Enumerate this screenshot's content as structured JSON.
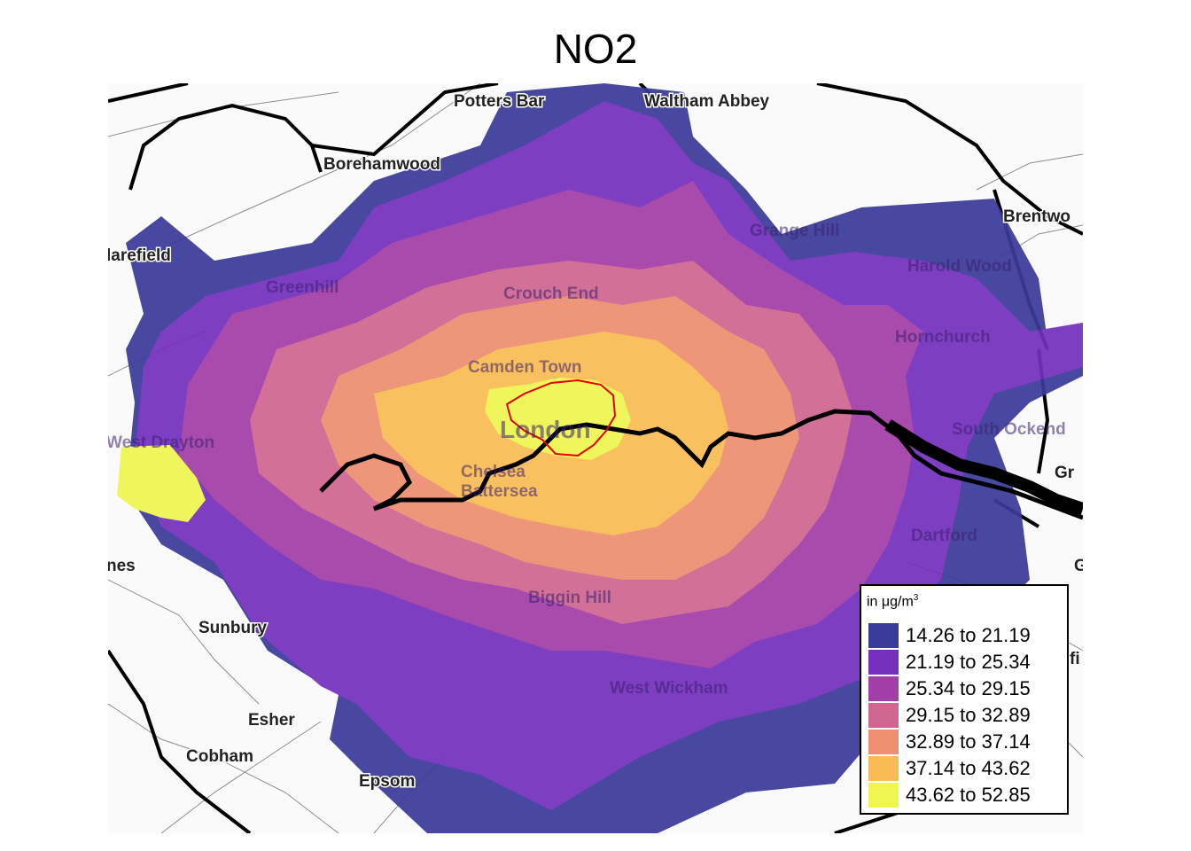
{
  "title": "NO2",
  "legend": {
    "unit_prefix": "in μg/m",
    "unit_exp": "3",
    "items": [
      {
        "label": "14.26 to 21.19",
        "color": "#3b3b9a"
      },
      {
        "label": "21.19 to 25.34",
        "color": "#7430bd"
      },
      {
        "label": "25.34 to 29.15",
        "color": "#a23ea8"
      },
      {
        "label": "29.15 to 32.89",
        "color": "#cf6690"
      },
      {
        "label": "32.89 to 37.14",
        "color": "#ee8f70"
      },
      {
        "label": "37.14 to 43.62",
        "color": "#f9bc55"
      },
      {
        "label": "43.62 to 52.85",
        "color": "#eef64f"
      }
    ]
  },
  "places": {
    "potters_bar": "Potters Bar",
    "waltham_abbey": "Waltham Abbey",
    "borehamwood": "Borehamwood",
    "brentwood": "Brentwo",
    "harefield": "larefield",
    "grange_hill": "Grange Hill",
    "harold_wood": "Harold Wood",
    "greenhill": "Greenhill",
    "crouch_end": "Crouch End",
    "hornchurch": "Hornchurch",
    "camden_town": "Camden Town",
    "london": "London",
    "west_drayton": "West Drayton",
    "south_ockendon": "South Ockend",
    "chelsea": "Chelsea",
    "battersea": "Battersea",
    "gr": "Gr",
    "dartford": "Dartford",
    "g": "G",
    "nes": "nes",
    "biggin_hill": "Biggin Hill",
    "sunbury": "Sunbury",
    "fi": "fi",
    "west_wickham": "West Wickham",
    "esher": "Esher",
    "cobham": "Cobham",
    "epsom": "Epsom"
  }
}
